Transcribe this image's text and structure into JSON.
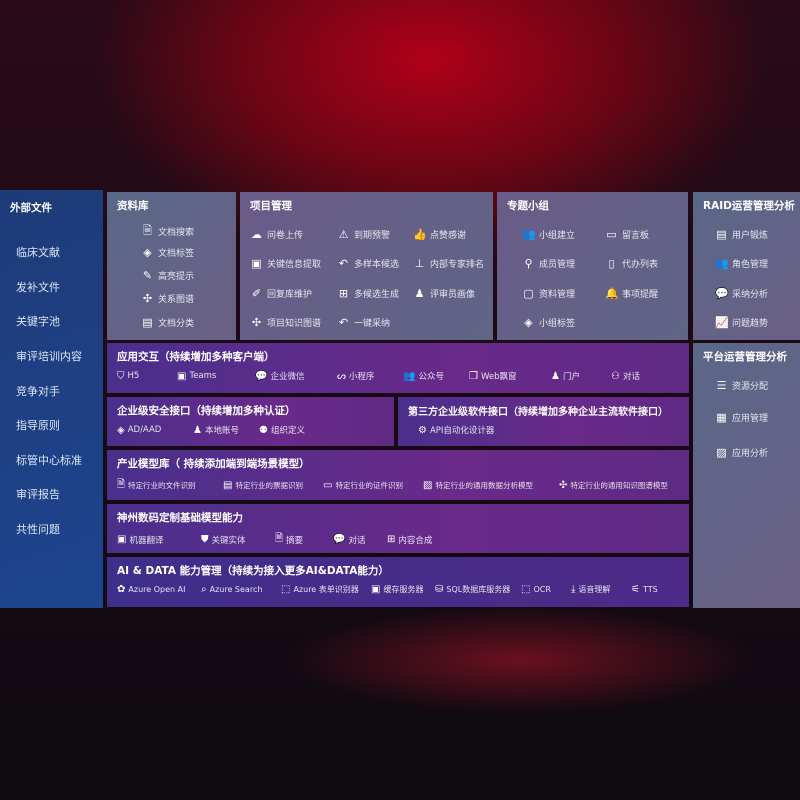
{
  "sidebar": {
    "title": "外部文件",
    "items": [
      "临床文献",
      "发补文件",
      "关键字池",
      "审评培训内容",
      "竞争对手",
      "指导原则",
      "标管中心标准",
      "审评报告",
      "共性问题"
    ]
  },
  "library": {
    "title": "资料库",
    "items": [
      {
        "icon": "file-search",
        "label": "文档搜索"
      },
      {
        "icon": "tag",
        "label": "文档标签"
      },
      {
        "icon": "pen",
        "label": "高亮提示"
      },
      {
        "icon": "graph",
        "label": "关系图谱"
      },
      {
        "icon": "doc-classify",
        "label": "文档分类"
      }
    ]
  },
  "project": {
    "title": "项目管理",
    "items": [
      {
        "icon": "cloud-upload",
        "label": "问卷上传"
      },
      {
        "icon": "alarm",
        "label": "到期预警"
      },
      {
        "icon": "thumbs-up",
        "label": "点赞感谢"
      },
      {
        "icon": "extract",
        "label": "关键信息提取"
      },
      {
        "icon": "reply",
        "label": "多样本候选"
      },
      {
        "icon": "rank",
        "label": "内部专家排名"
      },
      {
        "icon": "edit",
        "label": "回复库维护"
      },
      {
        "icon": "puzzle",
        "label": "多候选生成"
      },
      {
        "icon": "person",
        "label": "评审员画像"
      },
      {
        "icon": "graph",
        "label": "项目知识图谱"
      },
      {
        "icon": "reply",
        "label": "一键采纳"
      }
    ]
  },
  "group": {
    "title": "专题小组",
    "items": [
      {
        "icon": "users",
        "label": "小组建立"
      },
      {
        "icon": "bbs",
        "label": "留言板"
      },
      {
        "icon": "user-add",
        "label": "成员管理"
      },
      {
        "icon": "clipboard",
        "label": "代办列表"
      },
      {
        "icon": "folder",
        "label": "资料管理"
      },
      {
        "icon": "bell",
        "label": "事项提醒"
      },
      {
        "icon": "tag",
        "label": "小组标签"
      }
    ]
  },
  "raid": {
    "title": "RAID运营管理分析",
    "items": [
      {
        "icon": "id-card",
        "label": "用户锻炼"
      },
      {
        "icon": "users",
        "label": "角色管理"
      },
      {
        "icon": "qa",
        "label": "采纳分析"
      },
      {
        "icon": "trend",
        "label": "问题趋势"
      }
    ]
  },
  "platform": {
    "title": "平台运营管理分析",
    "items": [
      {
        "icon": "checklist",
        "label": "资源分配"
      },
      {
        "icon": "apps",
        "label": "应用管理"
      },
      {
        "icon": "chart",
        "label": "应用分析"
      }
    ]
  },
  "app": {
    "title": "应用交互（持续增加多种客户端）",
    "items": [
      {
        "icon": "html5",
        "label": "H5"
      },
      {
        "icon": "teams",
        "label": "Teams"
      },
      {
        "icon": "wechat",
        "label": "企业微信"
      },
      {
        "icon": "mini-program",
        "label": "小程序"
      },
      {
        "icon": "users",
        "label": "公众号"
      },
      {
        "icon": "window",
        "label": "Web飘窗"
      },
      {
        "icon": "portal",
        "label": "门户"
      },
      {
        "icon": "chat",
        "label": "对话"
      }
    ]
  },
  "security": {
    "title": "企业级安全接口（持续增加多种认证）",
    "items": [
      {
        "icon": "diamond",
        "label": "AD/AAD"
      },
      {
        "icon": "user",
        "label": "本地账号"
      },
      {
        "icon": "org",
        "label": "组织定义"
      }
    ]
  },
  "thirdparty": {
    "title": "第三方企业级软件接口（持续增加多种企业主流软件接口）",
    "items": [
      {
        "icon": "gear",
        "label": "API自动化设计器"
      }
    ]
  },
  "industry": {
    "title": "产业模型库（ 持续添加端到端场景模型）",
    "items": [
      {
        "icon": "doc",
        "label": "特定行业的文件识别"
      },
      {
        "icon": "receipt",
        "label": "特定行业的票据识别"
      },
      {
        "icon": "id-card",
        "label": "特定行业的证件识别"
      },
      {
        "icon": "chart",
        "label": "特定行业的通用数据分析模型"
      },
      {
        "icon": "graph",
        "label": "特定行业的通用知识图谱模型"
      }
    ]
  },
  "base": {
    "title": "神州数码定制基础模型能力",
    "items": [
      {
        "icon": "translate",
        "label": "机器翻译"
      },
      {
        "icon": "entity",
        "label": "关键实体"
      },
      {
        "icon": "summary",
        "label": "摘要"
      },
      {
        "icon": "chat",
        "label": "对话"
      },
      {
        "icon": "compose",
        "label": "内容合成"
      }
    ]
  },
  "ai": {
    "title": "AI & DATA 能力管理（持续为接入更多AI&DATA能力）",
    "items": [
      {
        "icon": "openai",
        "label": "Azure Open AI"
      },
      {
        "icon": "search",
        "label": "Azure Search"
      },
      {
        "icon": "form",
        "label": "Azure 表单识别器"
      },
      {
        "icon": "cache",
        "label": "缓存服务器"
      },
      {
        "icon": "database",
        "label": "SQL数据库服务器"
      },
      {
        "icon": "ocr",
        "label": "OCR"
      },
      {
        "icon": "speech",
        "label": "语音理解"
      },
      {
        "icon": "tts",
        "label": "TTS"
      }
    ]
  }
}
